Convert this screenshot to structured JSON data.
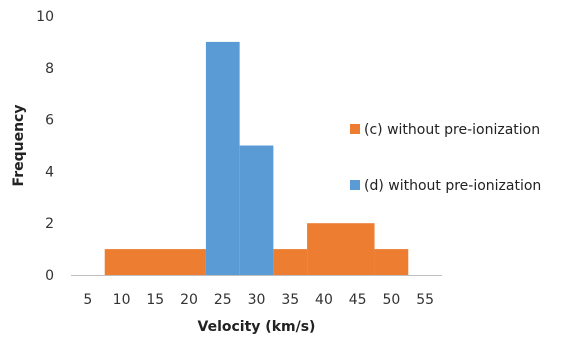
{
  "chart_data": {
    "type": "bar",
    "xlabel": "Velocity (km/s)",
    "ylabel": "Frequency",
    "xlim": [
      2.5,
      57.5
    ],
    "ylim": [
      0,
      10
    ],
    "x_ticks": [
      "5",
      "10",
      "15",
      "20",
      "25",
      "30",
      "35",
      "40",
      "45",
      "50",
      "55"
    ],
    "y_ticks": [
      "0",
      "2",
      "4",
      "6",
      "8",
      "10"
    ],
    "grid": false,
    "legend_position": "right",
    "series": [
      {
        "name": "(c) without pre-ionization",
        "color": "#ED7D31",
        "bins": [
          {
            "x0": 7.5,
            "x1": 22.5,
            "value": 1
          },
          {
            "x0": 32.5,
            "x1": 37.5,
            "value": 1
          },
          {
            "x0": 37.5,
            "x1": 47.5,
            "value": 2
          },
          {
            "x0": 47.5,
            "x1": 52.5,
            "value": 1
          }
        ]
      },
      {
        "name": "(d) without pre-ionization",
        "color": "#5B9BD5",
        "bins": [
          {
            "x0": 22.5,
            "x1": 27.5,
            "value": 9
          },
          {
            "x0": 27.5,
            "x1": 32.5,
            "value": 5
          }
        ]
      }
    ]
  }
}
